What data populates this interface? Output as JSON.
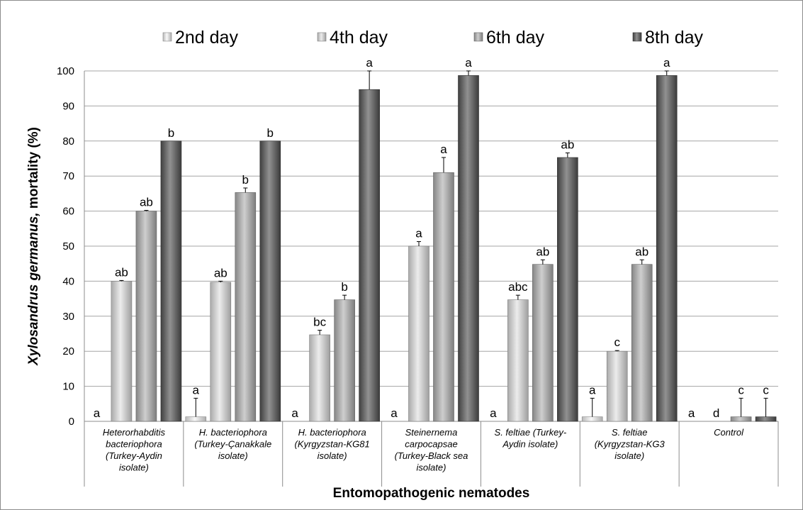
{
  "chart_data": {
    "type": "bar",
    "xlabel": "Entomopathogenic nematodes",
    "ylabel_italic": "Xylosandrus germanus,",
    "ylabel_rest": " mortality  (%)",
    "ylim": [
      0,
      100
    ],
    "yticks": [
      0,
      10,
      20,
      30,
      40,
      50,
      60,
      70,
      80,
      90,
      100
    ],
    "grid": true,
    "legend_position": "top",
    "categories": [
      [
        "Heterorhabditis",
        "bacteriophora",
        "(Turkey-Aydin",
        "isolate)"
      ],
      [
        "H. bacteriophora",
        "(Turkey-Çanakkale",
        "isolate)"
      ],
      [
        "H. bacteriophora",
        "(Kyrgyzstan-KG81",
        "isolate)"
      ],
      [
        "Steinernema",
        "carpocapsae",
        "(Turkey-Black sea",
        "isolate)"
      ],
      [
        "S. feltiae (Turkey-",
        "Aydin isolate)"
      ],
      [
        "S. feltiae",
        "(Kyrgyzstan-KG3",
        "isolate)"
      ],
      [
        "Control"
      ]
    ],
    "series": [
      {
        "name": "2nd day",
        "color": "#f6f6f6",
        "values": [
          0,
          1.3,
          0,
          0,
          0,
          1.3,
          0
        ],
        "errors": [
          0,
          5.3,
          0,
          0,
          0,
          5.3,
          0
        ],
        "letters": [
          "a",
          "a",
          "a",
          "a",
          "a",
          "a",
          "a"
        ]
      },
      {
        "name": "4th day",
        "color": "#e2e2e2",
        "values": [
          40,
          39.7,
          24.7,
          50,
          34.7,
          20,
          0
        ],
        "errors": [
          0.2,
          0.3,
          1.3,
          1.3,
          1.3,
          0.2,
          0
        ],
        "letters": [
          "ab",
          "ab",
          "bc",
          "a",
          "abc",
          "c",
          "d"
        ]
      },
      {
        "name": "6th day",
        "color": "#b3b3b3",
        "values": [
          60,
          65.3,
          34.7,
          71,
          44.8,
          44.8,
          1.3
        ],
        "errors": [
          0.2,
          1.3,
          1.3,
          4.3,
          1.3,
          1.3,
          5.3
        ],
        "letters": [
          "ab",
          "b",
          "b",
          "a",
          "ab",
          "ab",
          "c"
        ]
      },
      {
        "name": "8th day",
        "color": "#555555",
        "values": [
          80,
          80,
          94.7,
          98.7,
          75.3,
          98.7,
          1.3
        ],
        "errors": [
          0,
          0,
          5.3,
          1.3,
          1.3,
          1.3,
          5.3
        ],
        "letters": [
          "b",
          "b",
          "a",
          "a",
          "ab",
          "a",
          "c"
        ]
      }
    ]
  }
}
